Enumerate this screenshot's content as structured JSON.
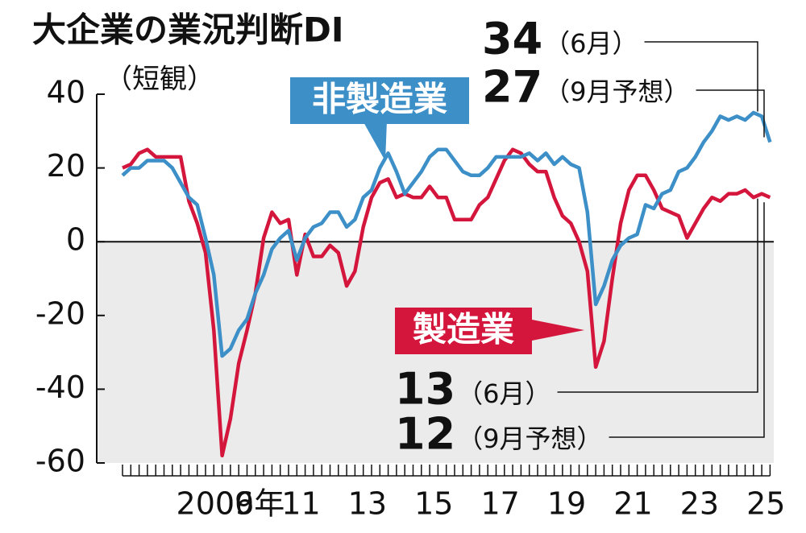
{
  "chart_data": {
    "type": "line",
    "title": "大企業の業況判断DI",
    "subtitle": "（短観）",
    "categories": [
      "2006年",
      null,
      null,
      null,
      null,
      null,
      null,
      null,
      null,
      null,
      null,
      null,
      "09",
      null,
      null,
      null,
      null,
      null,
      null,
      null,
      "11",
      null,
      null,
      null,
      null,
      null,
      null,
      null,
      "13",
      null,
      null,
      null,
      null,
      null,
      null,
      null,
      "15",
      null,
      null,
      null,
      null,
      null,
      null,
      null,
      "17",
      null,
      null,
      null,
      null,
      null,
      null,
      null,
      "19",
      null,
      null,
      null,
      null,
      null,
      null,
      null,
      "21",
      null,
      null,
      null,
      null,
      null,
      null,
      null,
      "23",
      null,
      null,
      null,
      null,
      null,
      null,
      null,
      "25",
      null,
      null
    ],
    "series": [
      {
        "name": "製造業",
        "color": "#d4163c",
        "values": [
          20,
          21,
          24,
          25,
          23,
          23,
          23,
          23,
          11,
          5,
          -3,
          -24,
          -58,
          -48,
          -33,
          -24,
          -14,
          1,
          8,
          5,
          6,
          -9,
          2,
          -4,
          -4,
          -1,
          -3,
          -12,
          -8,
          4,
          12,
          16,
          17,
          12,
          13,
          12,
          12,
          15,
          12,
          12,
          6,
          6,
          6,
          10,
          12,
          17,
          22,
          25,
          24,
          21,
          19,
          19,
          12,
          7,
          5,
          0,
          -8,
          -34,
          -27,
          -10,
          5,
          14,
          18,
          18,
          14,
          9,
          8,
          7,
          1,
          5,
          9,
          12,
          11,
          13,
          13,
          14,
          12,
          13,
          12
        ]
      },
      {
        "name": "非製造業",
        "color": "#3d8fc8",
        "values": [
          18,
          20,
          20,
          22,
          22,
          22,
          20,
          16,
          12,
          10,
          1,
          -9,
          -31,
          -29,
          -24,
          -21,
          -14,
          -9,
          -2,
          1,
          3,
          -5,
          1,
          4,
          5,
          8,
          8,
          4,
          6,
          12,
          14,
          20,
          24,
          19,
          13,
          16,
          19,
          23,
          25,
          25,
          22,
          19,
          18,
          18,
          20,
          23,
          23,
          23,
          23,
          24,
          22,
          24,
          21,
          23,
          21,
          20,
          8,
          -17,
          -12,
          -5,
          -1,
          1,
          2,
          10,
          9,
          13,
          14,
          19,
          20,
          23,
          27,
          30,
          34,
          33,
          34,
          33,
          35,
          34,
          27
        ]
      }
    ],
    "annotations": [
      "（6月）",
      "（9月予想）",
      "（6月）",
      "（9月予想）"
    ],
    "ylim": [
      -60,
      40
    ],
    "yticks": [
      -60,
      -40,
      -20,
      0,
      20,
      40
    ]
  }
}
